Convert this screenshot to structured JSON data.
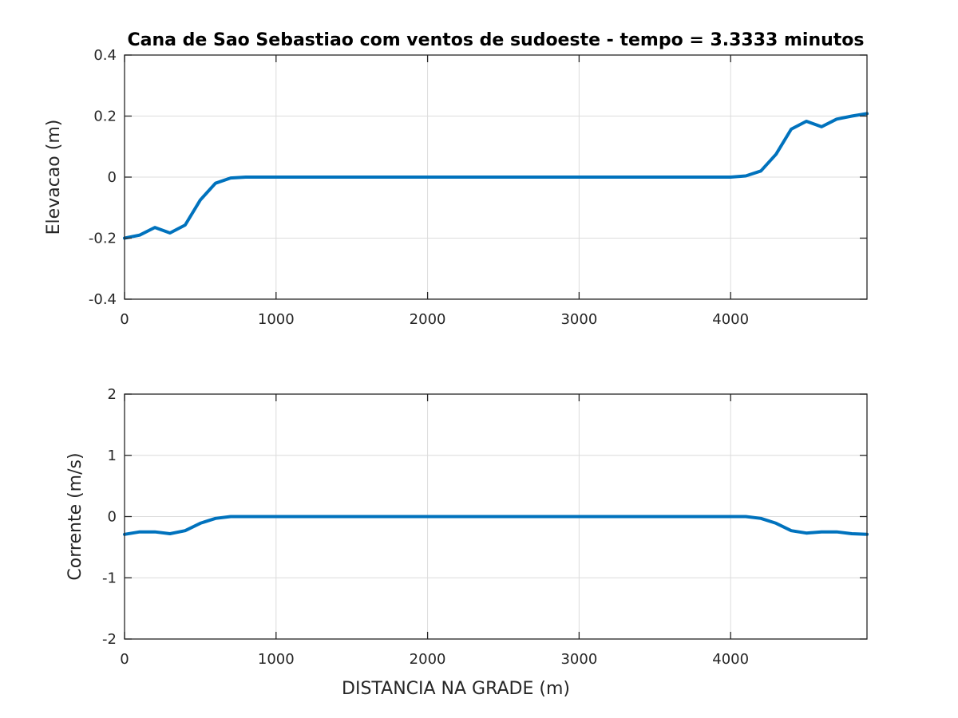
{
  "figure": {
    "title": "Cana de Sao Sebastiao com ventos de sudoeste - tempo = 3.3333 minutos"
  },
  "colors": {
    "series": "#0072BD",
    "grid": "#dcdcdc",
    "axes": "#262626"
  },
  "chart_data": [
    {
      "type": "line",
      "title": "Cana de Sao Sebastiao com ventos de sudoeste - tempo = 3.3333 minutos",
      "xlabel": "",
      "ylabel": "Elevacao (m)",
      "xlim": [
        0,
        4900
      ],
      "ylim": [
        -0.4,
        0.4
      ],
      "xticks": [
        0,
        1000,
        2000,
        3000,
        4000
      ],
      "xtick_labels": [
        "0",
        "1000",
        "2000",
        "3000",
        "4000"
      ],
      "yticks": [
        0.4,
        0.2,
        0,
        -0.2,
        -0.4
      ],
      "ytick_labels": [
        "0.4",
        "0.2",
        "0",
        "-0.2",
        "-0.4"
      ],
      "grid": true,
      "x": [
        0,
        100,
        200,
        300,
        400,
        500,
        600,
        700,
        800,
        900,
        1000,
        2000,
        3000,
        3800,
        4000,
        4100,
        4200,
        4300,
        4400,
        4500,
        4600,
        4700,
        4800,
        4900
      ],
      "series": [
        {
          "values": [
            -0.2,
            -0.19,
            -0.165,
            -0.183,
            -0.157,
            -0.075,
            -0.02,
            -0.003,
            0,
            0,
            0,
            0,
            0,
            0,
            0,
            0.004,
            0.02,
            0.075,
            0.157,
            0.183,
            0.165,
            0.19,
            0.2,
            0.208
          ]
        }
      ]
    },
    {
      "type": "line",
      "title": "",
      "xlabel": "DISTANCIA NA GRADE (m)",
      "ylabel": "Corrente (m/s)",
      "xlim": [
        0,
        4900
      ],
      "ylim": [
        -2,
        2
      ],
      "xticks": [
        0,
        1000,
        2000,
        3000,
        4000
      ],
      "xtick_labels": [
        "0",
        "1000",
        "2000",
        "3000",
        "4000"
      ],
      "yticks": [
        2,
        1,
        0,
        -1,
        -2
      ],
      "ytick_labels": [
        "2",
        "1",
        "0",
        "-1",
        "-2"
      ],
      "grid": true,
      "x": [
        0,
        100,
        200,
        300,
        400,
        500,
        600,
        700,
        800,
        900,
        1000,
        2000,
        3000,
        4000,
        4100,
        4200,
        4300,
        4400,
        4500,
        4600,
        4700,
        4800,
        4900
      ],
      "series": [
        {
          "values": [
            -0.29,
            -0.25,
            -0.25,
            -0.28,
            -0.23,
            -0.11,
            -0.03,
            0,
            0,
            0,
            0,
            0,
            0,
            0,
            0,
            -0.03,
            -0.11,
            -0.23,
            -0.27,
            -0.25,
            -0.25,
            -0.28,
            -0.29
          ]
        }
      ]
    }
  ]
}
